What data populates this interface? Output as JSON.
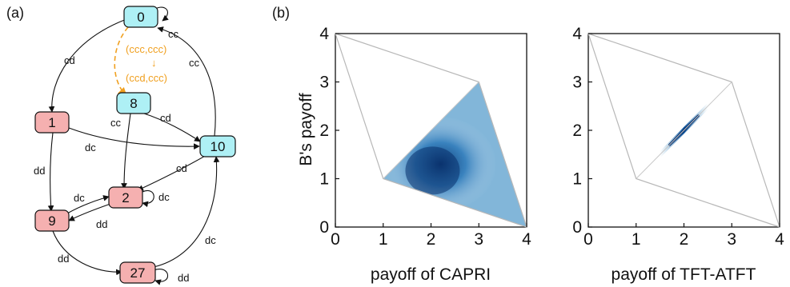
{
  "panel_a": {
    "label": "(a)",
    "nodes": [
      {
        "id": "0",
        "label": "0",
        "kind": "cooperate"
      },
      {
        "id": "8",
        "label": "8",
        "kind": "cooperate"
      },
      {
        "id": "10",
        "label": "10",
        "kind": "cooperate"
      },
      {
        "id": "1",
        "label": "1",
        "kind": "defect"
      },
      {
        "id": "2",
        "label": "2",
        "kind": "defect"
      },
      {
        "id": "9",
        "label": "9",
        "kind": "defect"
      },
      {
        "id": "27",
        "label": "27",
        "kind": "defect"
      }
    ],
    "edges": [
      {
        "from": "0",
        "to": "0",
        "label": "cc"
      },
      {
        "from": "0",
        "to": "1",
        "label": "cd"
      },
      {
        "from": "10",
        "to": "0",
        "label": "cc"
      },
      {
        "from": "8",
        "to": "2",
        "label": "cc"
      },
      {
        "from": "8",
        "to": "10",
        "label": "cd"
      },
      {
        "from": "1",
        "to": "10",
        "label": "dc"
      },
      {
        "from": "10",
        "to": "2",
        "label": "cd"
      },
      {
        "from": "1",
        "to": "9",
        "label": "dd"
      },
      {
        "from": "9",
        "to": "2",
        "label": "dc"
      },
      {
        "from": "2",
        "to": "2",
        "label": "dc"
      },
      {
        "from": "2",
        "to": "9",
        "label": "dd"
      },
      {
        "from": "9",
        "to": "27",
        "label": "dd"
      },
      {
        "from": "27",
        "to": "10",
        "label": "dc"
      },
      {
        "from": "27",
        "to": "27",
        "label": "dd"
      }
    ],
    "annotation": {
      "line1": "(ccc,ccc)",
      "arrow": "↓",
      "line2": "(ccd,ccc)"
    },
    "colors": {
      "cooperate_fill": "#aef0f5",
      "defect_fill": "#f5b0b0",
      "annotation": "#f0a020"
    }
  },
  "panel_b": {
    "label": "(b)",
    "ylabel": "B's payoff",
    "plots": [
      {
        "xlabel": "payoff of CAPRI",
        "xticks": [
          "0",
          "1",
          "2",
          "3",
          "4"
        ],
        "yticks": [
          "0",
          "1",
          "2",
          "3",
          "4"
        ]
      },
      {
        "xlabel": "payoff of TFT-ATFT",
        "xticks": [
          "0",
          "1",
          "2",
          "3",
          "4"
        ],
        "yticks": [
          "0",
          "1",
          "2",
          "3",
          "4"
        ]
      }
    ]
  },
  "chart_data": [
    {
      "type": "heatmap",
      "title": "",
      "xlabel": "payoff of CAPRI",
      "ylabel": "B's payoff",
      "xlim": [
        0,
        4
      ],
      "ylim": [
        0,
        4
      ],
      "feasible_region": [
        [
          0,
          4
        ],
        [
          3,
          3
        ],
        [
          4,
          0
        ],
        [
          1,
          1
        ]
      ],
      "density_region": [
        [
          1,
          1
        ],
        [
          3,
          3
        ],
        [
          4,
          0
        ]
      ],
      "density_peak": [
        2.2,
        1.3
      ]
    },
    {
      "type": "heatmap",
      "title": "",
      "xlabel": "payoff of TFT-ATFT",
      "ylabel": "",
      "xlim": [
        0,
        4
      ],
      "ylim": [
        0,
        4
      ],
      "feasible_region": [
        [
          0,
          4
        ],
        [
          3,
          3
        ],
        [
          4,
          0
        ],
        [
          1,
          1
        ]
      ],
      "density_region": [
        [
          1.5,
          1.5
        ],
        [
          2.5,
          2.5
        ]
      ],
      "density_peak": [
        2.0,
        2.0
      ]
    }
  ]
}
